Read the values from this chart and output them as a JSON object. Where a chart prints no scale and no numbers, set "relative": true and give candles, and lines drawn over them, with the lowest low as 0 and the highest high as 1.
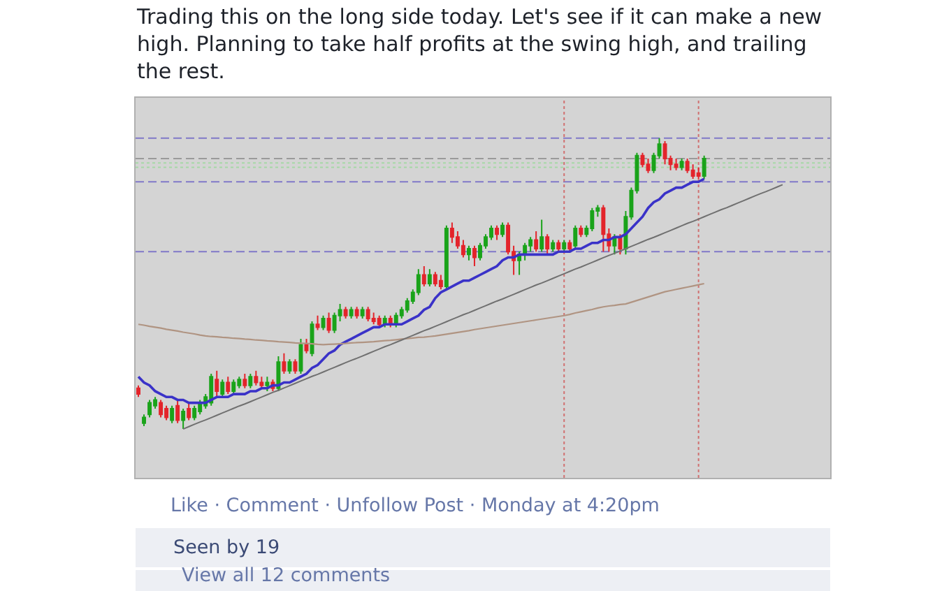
{
  "chart_data": {
    "type": "candlestick",
    "relative": true,
    "title": "Trading this on the long side today. Let's see if it can make a new high. Planning to take half profits at the swing high, and trailing the rest.",
    "annotations": [
      "Like · Comment · Unfollow Post · Monday at 4:20pm",
      "Seen by 19",
      "View all 12 comments"
    ],
    "categories": [
      null,
      null,
      null,
      null,
      null,
      null,
      null,
      null,
      null,
      null,
      null,
      null,
      null,
      null,
      null,
      null,
      null,
      null,
      null,
      null,
      null,
      null,
      null,
      null,
      null,
      null,
      null,
      null,
      null,
      null,
      null,
      null,
      null,
      null,
      null,
      null,
      null,
      null,
      null,
      null,
      null,
      null,
      null,
      null,
      null,
      null,
      null,
      null,
      null,
      null,
      null,
      null,
      null,
      null,
      null,
      null,
      null,
      null,
      null,
      null,
      null,
      null,
      null,
      null,
      null,
      null,
      null,
      null,
      null,
      null,
      null,
      null,
      null,
      null,
      null,
      null,
      null,
      null,
      null,
      null,
      null,
      null,
      null,
      null,
      null,
      null,
      null,
      null,
      null,
      null,
      null,
      null,
      null,
      null,
      null,
      null,
      null,
      null,
      null,
      null,
      null,
      null,
      null,
      null,
      null,
      null,
      null,
      null,
      null,
      null,
      null,
      null,
      null,
      null,
      null,
      null,
      null,
      null,
      null,
      null,
      null,
      null,
      null,
      null
    ],
    "ohlc": [
      [
        0.14,
        0.15,
        0.11,
        0.12
      ],
      [
        0.02,
        0.05,
        0.01,
        0.04
      ],
      [
        0.05,
        0.1,
        0.04,
        0.09
      ],
      [
        0.08,
        0.11,
        0.07,
        0.1
      ],
      [
        0.09,
        0.1,
        0.04,
        0.05
      ],
      [
        0.07,
        0.08,
        0.03,
        0.04
      ],
      [
        0.03,
        0.08,
        0.02,
        0.07
      ],
      [
        0.08,
        0.1,
        0.02,
        0.03
      ],
      [
        0.03,
        0.07,
        0.0,
        0.06
      ],
      [
        0.07,
        0.09,
        0.03,
        0.04
      ],
      [
        0.04,
        0.08,
        0.03,
        0.07
      ],
      [
        0.06,
        0.1,
        0.05,
        0.09
      ],
      [
        0.08,
        0.12,
        0.07,
        0.11
      ],
      [
        0.09,
        0.19,
        0.08,
        0.18
      ],
      [
        0.17,
        0.2,
        0.11,
        0.13
      ],
      [
        0.12,
        0.17,
        0.11,
        0.16
      ],
      [
        0.16,
        0.18,
        0.12,
        0.13
      ],
      [
        0.13,
        0.17,
        0.12,
        0.16
      ],
      [
        0.15,
        0.18,
        0.14,
        0.17
      ],
      [
        0.17,
        0.19,
        0.14,
        0.15
      ],
      [
        0.15,
        0.19,
        0.14,
        0.18
      ],
      [
        0.18,
        0.2,
        0.15,
        0.16
      ],
      [
        0.16,
        0.18,
        0.14,
        0.15
      ],
      [
        0.15,
        0.18,
        0.13,
        0.16
      ],
      [
        0.16,
        0.17,
        0.13,
        0.14
      ],
      [
        0.14,
        0.25,
        0.13,
        0.23
      ],
      [
        0.23,
        0.26,
        0.19,
        0.2
      ],
      [
        0.2,
        0.24,
        0.19,
        0.23
      ],
      [
        0.23,
        0.24,
        0.19,
        0.2
      ],
      [
        0.2,
        0.31,
        0.19,
        0.29
      ],
      [
        0.29,
        0.31,
        0.26,
        0.27
      ],
      [
        0.26,
        0.37,
        0.25,
        0.36
      ],
      [
        0.36,
        0.39,
        0.34,
        0.35
      ],
      [
        0.35,
        0.39,
        0.34,
        0.38
      ],
      [
        0.38,
        0.4,
        0.33,
        0.34
      ],
      [
        0.34,
        0.4,
        0.33,
        0.39
      ],
      [
        0.39,
        0.43,
        0.37,
        0.41
      ],
      [
        0.41,
        0.42,
        0.38,
        0.39
      ],
      [
        0.39,
        0.42,
        0.38,
        0.41
      ],
      [
        0.41,
        0.42,
        0.38,
        0.39
      ],
      [
        0.39,
        0.42,
        0.38,
        0.41
      ],
      [
        0.41,
        0.42,
        0.37,
        0.38
      ],
      [
        0.38,
        0.4,
        0.36,
        0.37
      ],
      [
        0.38,
        0.39,
        0.35,
        0.36
      ],
      [
        0.36,
        0.39,
        0.35,
        0.38
      ],
      [
        0.38,
        0.39,
        0.35,
        0.36
      ],
      [
        0.36,
        0.4,
        0.35,
        0.39
      ],
      [
        0.39,
        0.42,
        0.38,
        0.41
      ],
      [
        0.41,
        0.45,
        0.4,
        0.44
      ],
      [
        0.44,
        0.48,
        0.43,
        0.47
      ],
      [
        0.47,
        0.55,
        0.46,
        0.53
      ],
      [
        0.53,
        0.56,
        0.49,
        0.5
      ],
      [
        0.5,
        0.55,
        0.49,
        0.53
      ],
      [
        0.53,
        0.54,
        0.49,
        0.5
      ],
      [
        0.51,
        0.53,
        0.48,
        0.49
      ],
      [
        0.49,
        0.7,
        0.48,
        0.69
      ],
      [
        0.69,
        0.71,
        0.64,
        0.66
      ],
      [
        0.66,
        0.68,
        0.62,
        0.63
      ],
      [
        0.63,
        0.65,
        0.59,
        0.6
      ],
      [
        0.6,
        0.63,
        0.58,
        0.62
      ],
      [
        0.62,
        0.63,
        0.56,
        0.59
      ],
      [
        0.59,
        0.64,
        0.58,
        0.63
      ],
      [
        0.63,
        0.67,
        0.62,
        0.66
      ],
      [
        0.66,
        0.7,
        0.65,
        0.69
      ],
      [
        0.69,
        0.7,
        0.65,
        0.67
      ],
      [
        0.67,
        0.71,
        0.66,
        0.7
      ],
      [
        0.7,
        0.71,
        0.6,
        0.61
      ],
      [
        0.61,
        0.63,
        0.53,
        0.58
      ],
      [
        0.58,
        0.61,
        0.53,
        0.6
      ],
      [
        0.6,
        0.64,
        0.58,
        0.63
      ],
      [
        0.63,
        0.66,
        0.61,
        0.65
      ],
      [
        0.65,
        0.68,
        0.61,
        0.62
      ],
      [
        0.62,
        0.72,
        0.61,
        0.66
      ],
      [
        0.66,
        0.67,
        0.6,
        0.62
      ],
      [
        0.62,
        0.65,
        0.61,
        0.64
      ],
      [
        0.64,
        0.65,
        0.61,
        0.62
      ],
      [
        0.62,
        0.65,
        0.61,
        0.64
      ],
      [
        0.64,
        0.65,
        0.61,
        0.62
      ],
      [
        0.63,
        0.7,
        0.62,
        0.69
      ],
      [
        0.69,
        0.7,
        0.66,
        0.67
      ],
      [
        0.67,
        0.7,
        0.66,
        0.69
      ],
      [
        0.69,
        0.76,
        0.68,
        0.75
      ],
      [
        0.75,
        0.77,
        0.73,
        0.76
      ],
      [
        0.76,
        0.77,
        0.61,
        0.67
      ],
      [
        0.67,
        0.69,
        0.61,
        0.63
      ],
      [
        0.63,
        0.67,
        0.6,
        0.66
      ],
      [
        0.66,
        0.67,
        0.6,
        0.62
      ],
      [
        0.62,
        0.75,
        0.6,
        0.73
      ],
      [
        0.73,
        0.83,
        0.72,
        0.82
      ],
      [
        0.82,
        0.95,
        0.81,
        0.94
      ],
      [
        0.94,
        0.95,
        0.9,
        0.91
      ],
      [
        0.91,
        0.93,
        0.88,
        0.89
      ],
      [
        0.89,
        0.95,
        0.88,
        0.94
      ],
      [
        0.94,
        1.0,
        0.93,
        0.98
      ],
      [
        0.98,
        0.99,
        0.91,
        0.93
      ],
      [
        0.93,
        0.94,
        0.89,
        0.91
      ],
      [
        0.91,
        0.93,
        0.89,
        0.9
      ],
      [
        0.9,
        0.93,
        0.89,
        0.92
      ],
      [
        0.92,
        0.93,
        0.88,
        0.89
      ],
      [
        0.89,
        0.91,
        0.86,
        0.87
      ],
      [
        0.88,
        0.9,
        0.86,
        0.87
      ],
      [
        0.87,
        0.94,
        0.86,
        0.93
      ],
      null,
      null,
      null,
      null,
      null,
      null,
      null,
      null,
      null,
      null,
      null,
      null,
      null,
      null,
      null,
      null,
      null,
      null,
      null,
      null,
      null,
      null
    ],
    "colors": [
      "#e3242b",
      "#1aa31a",
      "#1aa31a",
      "#1aa31a",
      "#e3242b",
      "#e3242b",
      "#1aa31a",
      "#e3242b",
      "#1aa31a",
      "#e3242b",
      "#1aa31a",
      "#1aa31a",
      "#1aa31a",
      "#1aa31a",
      "#e3242b",
      "#1aa31a",
      "#e3242b",
      "#1aa31a",
      "#1aa31a",
      "#e3242b",
      "#1aa31a",
      "#e3242b",
      "#e3242b",
      "#1aa31a",
      "#e3242b",
      "#1aa31a",
      "#e3242b",
      "#1aa31a",
      "#e3242b",
      "#1aa31a",
      "#e3242b",
      "#1aa31a",
      "#e3242b",
      "#1aa31a",
      "#e3242b",
      "#1aa31a",
      "#1aa31a",
      "#e3242b",
      "#1aa31a",
      "#e3242b",
      "#1aa31a",
      "#e3242b",
      "#e3242b",
      "#e3242b",
      "#1aa31a",
      "#e3242b",
      "#1aa31a",
      "#1aa31a",
      "#1aa31a",
      "#1aa31a",
      "#1aa31a",
      "#e3242b",
      "#1aa31a",
      "#e3242b",
      "#e3242b",
      "#1aa31a",
      "#e3242b",
      "#e3242b",
      "#e3242b",
      "#1aa31a",
      "#e3242b",
      "#1aa31a",
      "#1aa31a",
      "#1aa31a",
      "#e3242b",
      "#1aa31a",
      "#e3242b",
      "#e3242b",
      "#1aa31a",
      "#1aa31a",
      "#1aa31a",
      "#e3242b",
      "#1aa31a",
      "#e3242b",
      "#1aa31a",
      "#e3242b",
      "#1aa31a",
      "#e3242b",
      "#1aa31a",
      "#e3242b",
      "#1aa31a",
      "#1aa31a",
      "#1aa31a",
      "#e3242b",
      "#e3242b",
      "#1aa31a",
      "#e3242b",
      "#1aa31a",
      "#1aa31a",
      "#1aa31a",
      "#e3242b",
      "#e3242b",
      "#1aa31a",
      "#1aa31a",
      "#e3242b",
      "#e3242b",
      "#e3242b",
      "#1aa31a",
      "#e3242b",
      "#e3242b",
      "#e3242b",
      "#1aa31a",
      null,
      null,
      null,
      null,
      null,
      null,
      null,
      null,
      null,
      null,
      null,
      null,
      null,
      null,
      null,
      null,
      null,
      null,
      null,
      null,
      null,
      null
    ],
    "series": [
      {
        "type": "line",
        "color": "#3a32c8",
        "line_style": "solid",
        "values": [
          0.18,
          0.16,
          0.15,
          0.13,
          0.12,
          0.11,
          0.11,
          0.1,
          0.1,
          0.09,
          0.09,
          0.09,
          0.09,
          0.1,
          0.11,
          0.11,
          0.11,
          0.12,
          0.12,
          0.12,
          0.13,
          0.13,
          0.14,
          0.14,
          0.15,
          0.15,
          0.16,
          0.16,
          0.17,
          0.18,
          0.19,
          0.21,
          0.22,
          0.24,
          0.26,
          0.27,
          0.29,
          0.3,
          0.31,
          0.32,
          0.33,
          0.34,
          0.35,
          0.35,
          0.36,
          0.36,
          0.36,
          0.36,
          0.37,
          0.38,
          0.39,
          0.41,
          0.42,
          0.45,
          0.47,
          0.48,
          0.49,
          0.5,
          0.51,
          0.51,
          0.52,
          0.53,
          0.54,
          0.55,
          0.56,
          0.58,
          0.59,
          0.59,
          0.6,
          0.6,
          0.6,
          0.6,
          0.6,
          0.6,
          0.6,
          0.61,
          0.61,
          0.61,
          0.62,
          0.62,
          0.63,
          0.64,
          0.64,
          0.65,
          0.65,
          0.66,
          0.66,
          0.67,
          0.69,
          0.71,
          0.73,
          0.76,
          0.78,
          0.79,
          0.81,
          0.82,
          0.83,
          0.83,
          0.84,
          0.85,
          0.85,
          0.86,
          null,
          null,
          null,
          null,
          null,
          null,
          null,
          null,
          null,
          null,
          null,
          null,
          null,
          null,
          null,
          null,
          null,
          null,
          null,
          null,
          null,
          null
        ]
      },
      {
        "type": "line",
        "color": "#b09482",
        "line_style": "solid",
        "values": [
          0.36,
          0.357,
          0.353,
          0.35,
          0.347,
          0.343,
          0.34,
          0.337,
          0.333,
          0.33,
          0.327,
          0.323,
          0.32,
          0.318,
          0.317,
          0.315,
          0.314,
          0.312,
          0.311,
          0.309,
          0.308,
          0.306,
          0.305,
          0.303,
          0.302,
          0.3,
          0.299,
          0.298,
          0.296,
          0.295,
          0.294,
          0.293,
          0.291,
          0.29,
          0.291,
          0.292,
          0.293,
          0.294,
          0.296,
          0.297,
          0.298,
          0.299,
          0.3,
          0.302,
          0.304,
          0.305,
          0.307,
          0.309,
          0.311,
          0.313,
          0.315,
          0.316,
          0.318,
          0.32,
          0.323,
          0.326,
          0.329,
          0.332,
          0.335,
          0.338,
          0.342,
          0.345,
          0.348,
          0.351,
          0.354,
          0.357,
          0.36,
          0.363,
          0.366,
          0.369,
          0.372,
          0.375,
          0.378,
          0.381,
          0.384,
          0.387,
          0.39,
          0.394,
          0.399,
          0.403,
          0.407,
          0.411,
          0.416,
          0.42,
          0.423,
          0.425,
          0.428,
          0.43,
          0.436,
          0.442,
          0.448,
          0.454,
          0.46,
          0.466,
          0.472,
          0.476,
          0.48,
          0.484,
          0.488,
          0.492,
          0.496,
          0.5,
          null,
          null,
          null,
          null,
          null,
          null,
          null,
          null,
          null,
          null,
          null,
          null,
          null,
          null,
          null,
          null,
          null,
          null,
          null,
          null,
          null,
          null
        ]
      },
      {
        "type": "line",
        "color": "#707070",
        "line_style": "solid",
        "values": [
          null,
          null,
          null,
          null,
          null,
          null,
          null,
          null,
          0.0,
          0.008,
          0.016,
          0.024,
          0.031,
          0.039,
          0.047,
          0.055,
          0.063,
          0.071,
          0.079,
          0.086,
          0.094,
          0.102,
          0.11,
          0.118,
          0.126,
          0.133,
          0.141,
          0.149,
          0.157,
          0.165,
          0.173,
          0.181,
          0.188,
          0.196,
          0.204,
          0.212,
          0.22,
          0.228,
          0.236,
          0.243,
          0.251,
          0.259,
          0.267,
          0.275,
          0.283,
          0.29,
          0.298,
          0.306,
          0.314,
          0.322,
          0.33,
          0.338,
          0.345,
          0.353,
          0.361,
          0.369,
          0.377,
          0.385,
          0.393,
          0.4,
          0.408,
          0.416,
          0.424,
          0.432,
          0.44,
          0.447,
          0.455,
          0.463,
          0.471,
          0.479,
          0.487,
          0.495,
          0.502,
          0.51,
          0.518,
          0.526,
          0.534,
          0.542,
          0.55,
          0.557,
          0.565,
          0.573,
          0.581,
          0.589,
          0.597,
          0.604,
          0.612,
          0.62,
          0.628,
          0.636,
          0.644,
          0.652,
          0.659,
          0.667,
          0.675,
          0.683,
          0.691,
          0.699,
          0.707,
          0.714,
          0.722,
          0.73,
          0.738,
          0.746,
          0.754,
          0.761,
          0.769,
          0.777,
          0.785,
          0.793,
          0.801,
          0.809,
          0.816,
          0.824,
          0.832,
          0.84,
          null,
          null,
          null,
          null,
          null,
          null,
          null,
          null
        ]
      }
    ],
    "ref_lines": [
      {
        "axis": "y",
        "value": 1.0,
        "color": "#8078c8",
        "line_style": "dashed"
      },
      {
        "axis": "y",
        "value": 0.93,
        "color": "#9a9a9a",
        "line_style": "dashed"
      },
      {
        "axis": "y",
        "value": 0.915,
        "color": "#a6d8a6",
        "line_style": "dotted"
      },
      {
        "axis": "y",
        "value": 0.9,
        "color": "#a6d8a6",
        "line_style": "dotted"
      },
      {
        "axis": "y",
        "value": 0.85,
        "color": "#8078c8",
        "line_style": "dashed"
      },
      {
        "axis": "y",
        "value": 0.61,
        "color": "#8078c8",
        "line_style": "dashed"
      }
    ]
  }
}
